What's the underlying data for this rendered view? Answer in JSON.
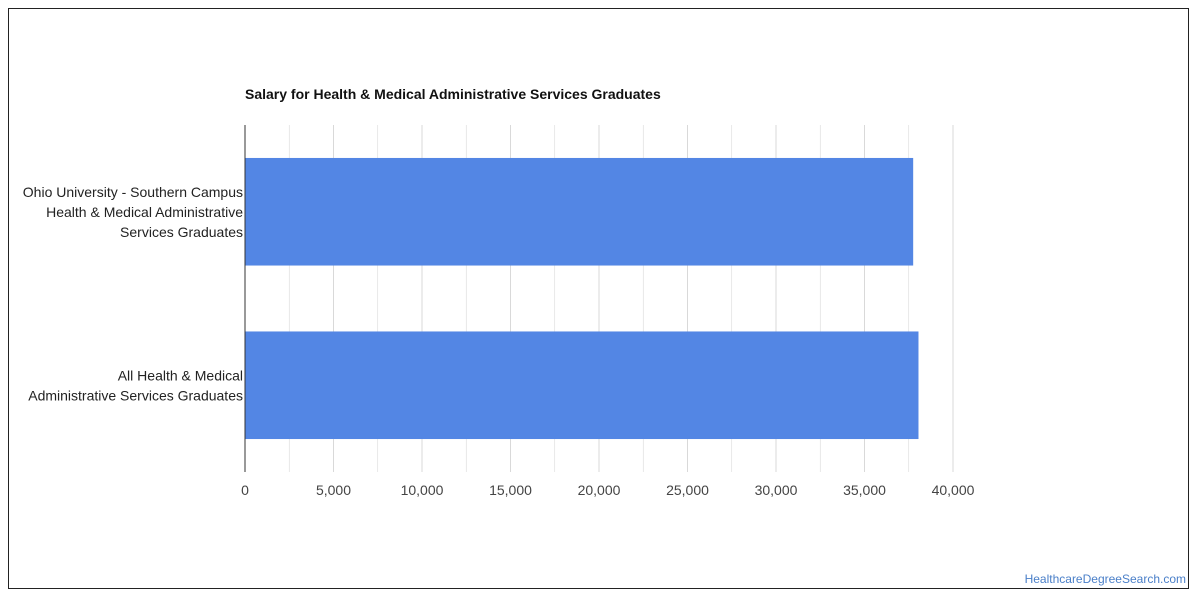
{
  "chart_data": {
    "type": "bar",
    "orientation": "horizontal",
    "title": "Salary for Health & Medical Administrative Services Graduates",
    "categories": [
      [
        "Ohio University - Southern Campus",
        "Health & Medical Administrative",
        "Services Graduates"
      ],
      [
        "All Health & Medical",
        "Administrative Services Graduates"
      ]
    ],
    "values": [
      37750,
      38050
    ],
    "xlim": [
      0,
      40000
    ],
    "xticks": [
      0,
      5000,
      10000,
      15000,
      20000,
      25000,
      30000,
      35000,
      40000
    ],
    "xtick_labels": [
      "0",
      "5,000",
      "10,000",
      "15,000",
      "20,000",
      "25,000",
      "30,000",
      "35,000",
      "40,000"
    ],
    "grid": true,
    "legend": "none",
    "bar_color": "#5386e4",
    "grid_color": "#d9d9d9"
  },
  "footer": {
    "credit": "HealthcareDegreeSearch.com"
  }
}
